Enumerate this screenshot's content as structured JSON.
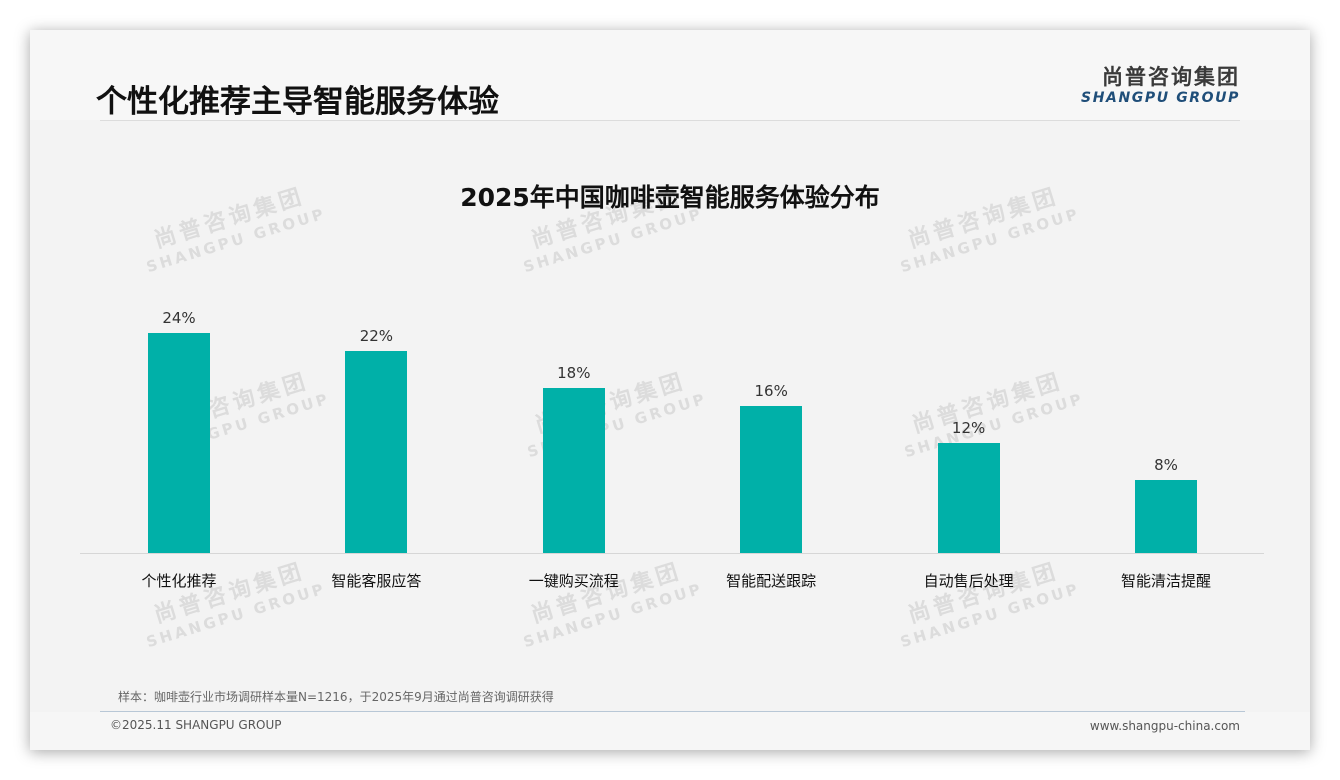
{
  "page": {
    "title": "个性化推荐主导智能服务体验",
    "logo_cn": "尚普咨询集团",
    "logo_en": "SHANGPU GROUP",
    "watermark_cn": "尚普咨询集团",
    "watermark_en": "SHANGPU GROUP",
    "note": "样本：咖啡壶行业市场调研样本量N=1216，于2025年9月通过尚普咨询调研获得",
    "copyright": "©2025.11 SHANGPU GROUP",
    "website": "www.shangpu-china.com",
    "accent_color": "#00b0a8"
  },
  "chart_data": {
    "type": "bar",
    "title": "2025年中国咖啡壶智能服务体验分布",
    "categories": [
      "个性化推荐",
      "智能客服应答",
      "一键购买流程",
      "智能配送跟踪",
      "自动售后处理",
      "智能清洁提醒"
    ],
    "values": [
      24,
      22,
      18,
      16,
      12,
      8
    ],
    "value_labels": [
      "24%",
      "22%",
      "18%",
      "16%",
      "12%",
      "8%"
    ],
    "xlabel": "",
    "ylabel": "",
    "ylim": [
      0,
      24
    ],
    "grid": false,
    "legend": "none",
    "bar_color": "#00b0a8"
  }
}
